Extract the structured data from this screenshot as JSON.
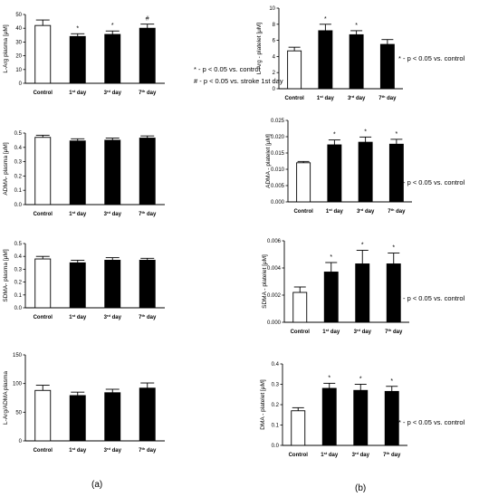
{
  "annotations": {
    "a_line1": "* - p < 0.05 vs. control",
    "a_line2": "# - p < 0.05 vs. stroke 1st day",
    "b1": "* - p < 0.05 vs. control",
    "b2": "* - p < 0.05 vs. control",
    "b3": "* - p < 0.05 vs. control",
    "b4": "* - p < 0.05 vs. control"
  },
  "panel_labels": {
    "a": "(a)",
    "b": "(b)"
  },
  "colors": {
    "control_fill": "#ffffff",
    "day_fill": "#000000",
    "axis": "#000000"
  },
  "chart_data": [
    {
      "type": "bar",
      "ylabel": "L-Arg plasma [μM]",
      "categories": [
        "Control",
        "1st day",
        "3rd day",
        "7th day"
      ],
      "values": [
        42,
        34,
        35.5,
        40
      ],
      "errors": [
        4,
        2,
        2.5,
        3
      ],
      "ylim": [
        0,
        50
      ],
      "yticks": [
        "0",
        "10",
        "20",
        "30",
        "40",
        "50"
      ],
      "marks": [
        "",
        "*",
        "*",
        "#"
      ]
    },
    {
      "type": "bar",
      "ylabel": "ADMA- plasma [μM]",
      "categories": [
        "Control",
        "1st day",
        "3rd day",
        "7th day"
      ],
      "values": [
        0.47,
        0.445,
        0.45,
        0.465
      ],
      "errors": [
        0.015,
        0.015,
        0.015,
        0.015
      ],
      "ylim": [
        0,
        0.5
      ],
      "yticks": [
        "0.0",
        "0.1",
        "0.2",
        "0.3",
        "0.4",
        "0.5"
      ],
      "marks": [
        "",
        "",
        "",
        ""
      ]
    },
    {
      "type": "bar",
      "ylabel": "SDMA- plasma [μM]",
      "categories": [
        "Control",
        "1st day",
        "3rd day",
        "7th day"
      ],
      "values": [
        0.38,
        0.35,
        0.37,
        0.37
      ],
      "errors": [
        0.02,
        0.02,
        0.02,
        0.015
      ],
      "ylim": [
        0,
        0.5
      ],
      "yticks": [
        "0.0",
        "0.1",
        "0.2",
        "0.3",
        "0.4",
        "0.5"
      ],
      "marks": [
        "",
        "",
        "",
        ""
      ]
    },
    {
      "type": "bar",
      "ylabel": "L-Arg/ADMA plasma",
      "categories": [
        "Control",
        "1st day",
        "3rd day",
        "7th day"
      ],
      "values": [
        88,
        79,
        84,
        92
      ],
      "errors": [
        9,
        6,
        6,
        9
      ],
      "ylim": [
        0,
        150
      ],
      "yticks": [
        "0",
        "50",
        "100",
        "150"
      ],
      "marks": [
        "",
        "",
        "",
        ""
      ]
    },
    {
      "type": "bar",
      "ylabel": "L-Arg - platelet [μM]",
      "categories": [
        "Control",
        "1st day",
        "3rd day",
        "7th day"
      ],
      "values": [
        4.7,
        7.2,
        6.7,
        5.5
      ],
      "errors": [
        0.45,
        0.8,
        0.5,
        0.6
      ],
      "ylim": [
        0,
        10
      ],
      "yticks": [
        "0",
        "2",
        "4",
        "6",
        "8",
        "10"
      ],
      "marks": [
        "",
        "*",
        "*",
        ""
      ]
    },
    {
      "type": "bar",
      "ylabel": "ADMA - platelet [μM]",
      "categories": [
        "Control",
        "1st day",
        "3rd day",
        "7th day"
      ],
      "values": [
        0.012,
        0.0175,
        0.0183,
        0.0177
      ],
      "errors": [
        0.0004,
        0.0015,
        0.0016,
        0.0015
      ],
      "ylim": [
        0,
        0.025
      ],
      "yticks": [
        "0.000",
        "0.005",
        "0.010",
        "0.015",
        "0.020",
        "0.025"
      ],
      "marks": [
        "",
        "*",
        "*",
        "*"
      ]
    },
    {
      "type": "bar",
      "ylabel": "SDMA - platelet [μM]",
      "categories": [
        "Control",
        "1st day",
        "3rd day",
        "7th day"
      ],
      "values": [
        0.0022,
        0.0037,
        0.0043,
        0.0043
      ],
      "errors": [
        0.0004,
        0.0007,
        0.001,
        0.0008
      ],
      "ylim": [
        0,
        0.006
      ],
      "yticks": [
        "0.000",
        "0.002",
        "0.004",
        "0.006"
      ],
      "marks": [
        "",
        "*",
        "*",
        "*"
      ]
    },
    {
      "type": "bar",
      "ylabel": "DMA - platelet [μM]",
      "categories": [
        "Control",
        "1st day",
        "3rd day",
        "7th day"
      ],
      "values": [
        0.17,
        0.28,
        0.27,
        0.265
      ],
      "errors": [
        0.015,
        0.025,
        0.03,
        0.025
      ],
      "ylim": [
        0,
        0.4
      ],
      "yticks": [
        "0.0",
        "0.1",
        "0.2",
        "0.3",
        "0.4"
      ],
      "marks": [
        "",
        "*",
        "*",
        "*"
      ]
    }
  ]
}
